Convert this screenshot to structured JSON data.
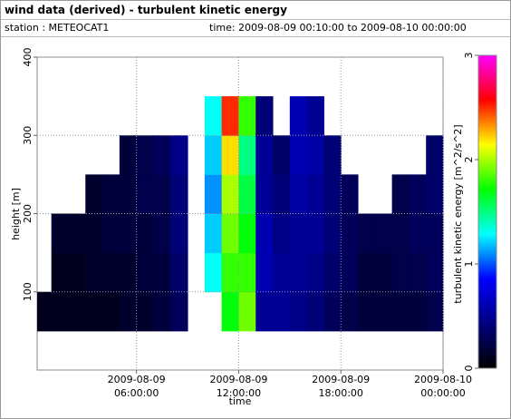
{
  "header": {
    "title": "wind data (derived) - turbulent kinetic energy",
    "station": "station : METEOCAT1",
    "time": "time: 2009-08-09 00:10:00 to 2009-08-10 00:00:00"
  },
  "chart_data": {
    "type": "heatmap",
    "xlabel": "time",
    "ylabel": "height [m]",
    "zlabel": "turbulent kinetic energy [m^2/s^2]",
    "x_edges": [
      0.1667,
      1,
      2,
      3,
      4,
      5,
      6,
      7,
      8,
      9,
      10,
      11,
      12,
      13,
      14,
      15,
      16,
      17,
      18,
      19,
      20,
      21,
      22,
      23,
      24
    ],
    "y_edges": [
      0,
      50,
      100,
      150,
      200,
      250,
      300,
      350,
      400
    ],
    "z": [
      [
        null,
        0.1,
        null,
        null,
        null,
        null,
        null,
        null
      ],
      [
        null,
        0.1,
        0.1,
        0.15,
        null,
        null,
        null,
        null
      ],
      [
        null,
        0.1,
        0.1,
        0.15,
        null,
        null,
        null,
        null
      ],
      [
        null,
        0.1,
        0.15,
        0.15,
        0.15,
        null,
        null,
        null
      ],
      [
        null,
        0.1,
        0.15,
        0.2,
        0.2,
        null,
        null,
        null
      ],
      [
        null,
        0.15,
        0.15,
        0.2,
        0.2,
        0.2,
        null,
        null
      ],
      [
        null,
        0.15,
        0.2,
        0.2,
        0.25,
        0.25,
        null,
        null
      ],
      [
        null,
        0.2,
        0.2,
        0.25,
        0.25,
        0.3,
        null,
        null
      ],
      [
        null,
        0.3,
        0.35,
        0.4,
        0.4,
        0.45,
        null,
        null
      ],
      [
        null,
        null,
        null,
        null,
        null,
        null,
        null,
        null
      ],
      [
        null,
        null,
        1.3,
        1.2,
        1.1,
        1.2,
        1.3,
        null
      ],
      [
        null,
        1.7,
        1.8,
        1.9,
        2.0,
        2.2,
        2.5,
        null
      ],
      [
        null,
        1.9,
        1.8,
        1.7,
        1.6,
        1.5,
        1.8,
        null
      ],
      [
        null,
        0.5,
        0.6,
        0.6,
        0.5,
        0.5,
        0.4,
        null
      ],
      [
        null,
        0.5,
        0.5,
        0.45,
        0.4,
        0.35,
        null,
        null
      ],
      [
        null,
        0.45,
        0.5,
        0.5,
        0.55,
        0.6,
        0.6,
        null
      ],
      [
        null,
        0.4,
        0.45,
        0.5,
        0.5,
        0.55,
        0.5,
        null
      ],
      [
        null,
        0.3,
        0.35,
        0.4,
        0.4,
        0.4,
        null,
        null
      ],
      [
        null,
        0.25,
        0.3,
        0.3,
        0.3,
        null,
        null,
        null
      ],
      [
        null,
        0.2,
        0.2,
        0.25,
        null,
        null,
        null,
        null
      ],
      [
        null,
        0.2,
        0.2,
        0.25,
        null,
        null,
        null,
        null
      ],
      [
        null,
        0.2,
        0.25,
        0.25,
        0.25,
        null,
        null,
        null
      ],
      [
        null,
        0.2,
        0.25,
        0.3,
        0.3,
        null,
        null,
        null
      ],
      [
        null,
        0.25,
        0.3,
        0.3,
        0.35,
        0.35,
        null,
        null
      ]
    ],
    "xlim": [
      0.1667,
      24
    ],
    "ylim": [
      0,
      400
    ],
    "zlim": [
      0,
      3
    ],
    "xticks": [
      {
        "value": 6,
        "label": "2009-08-09 06:00:00"
      },
      {
        "value": 12,
        "label": "2009-08-09 12:00:00"
      },
      {
        "value": 18,
        "label": "2009-08-09 18:00:00"
      },
      {
        "value": 24,
        "label": "2009-08-10 00:00:00"
      }
    ],
    "yticks": [
      100,
      200,
      300,
      400
    ],
    "zticks": [
      0,
      1,
      2,
      3
    ],
    "colormap": [
      "#000000",
      "#000080",
      "#0000ff",
      "#00ffff",
      "#00ff00",
      "#ffff00",
      "#ff0000",
      "#ff00ff"
    ],
    "grid": true
  }
}
